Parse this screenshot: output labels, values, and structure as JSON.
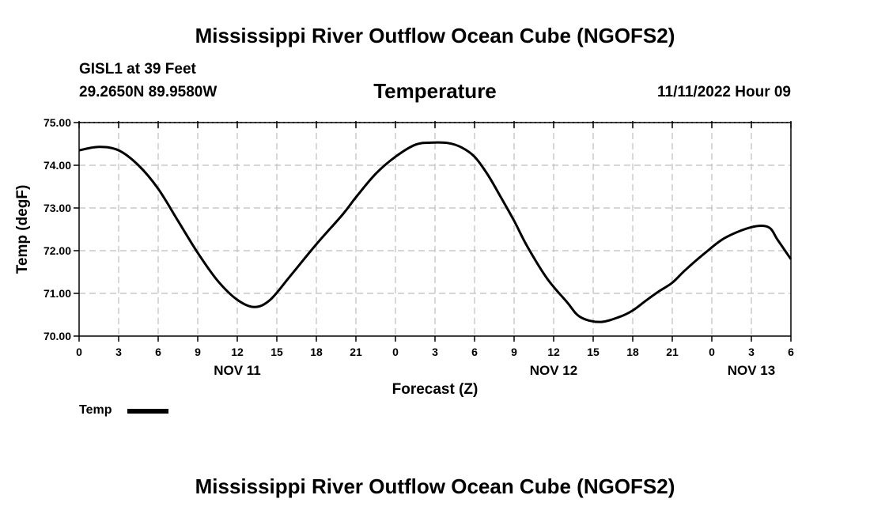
{
  "header": {
    "title": "Mississippi River Outflow Ocean Cube (NGOFS2)",
    "station": "GISL1 at 39 Feet",
    "coords": "29.2650N  89.9580W",
    "subtitle": "Temperature",
    "datetime": "11/11/2022 Hour 09"
  },
  "footer": {
    "title": "Mississippi River Outflow Ocean Cube (NGOFS2)"
  },
  "legend": {
    "label": "Temp",
    "color": "#000000"
  },
  "chart_data": {
    "type": "line",
    "title": "Temperature",
    "xlabel": "Forecast (Z)",
    "ylabel": "Temp (degF)",
    "ylim": [
      70.0,
      75.0
    ],
    "xlim": [
      0,
      54
    ],
    "grid": true,
    "y_ticks": [
      "70.00",
      "71.00",
      "72.00",
      "73.00",
      "74.00",
      "75.00"
    ],
    "y_tick_values": [
      70,
      71,
      72,
      73,
      74,
      75
    ],
    "x_ticks": [
      "0",
      "3",
      "6",
      "9",
      "12",
      "15",
      "18",
      "21",
      "0",
      "3",
      "6",
      "9",
      "12",
      "15",
      "18",
      "21",
      "0",
      "3",
      "6"
    ],
    "day_labels": [
      {
        "label": "NOV 11",
        "hour": 12
      },
      {
        "label": "NOV 12",
        "hour": 36
      },
      {
        "label": "NOV 13",
        "hour": 51
      }
    ],
    "series": [
      {
        "name": "Temp",
        "x": [
          0,
          1.5,
          3,
          4.5,
          6,
          7.5,
          9,
          10.5,
          12,
          13.3,
          14.5,
          16,
          18,
          20,
          21,
          22.5,
          24,
          25.5,
          26.7,
          28,
          29,
          30,
          31,
          32,
          33,
          34,
          35.5,
          37,
          38,
          39.5,
          41,
          42,
          43,
          44,
          45,
          46,
          47.5,
          49,
          51,
          52.3,
          53,
          54
        ],
        "values": [
          74.35,
          74.43,
          74.35,
          74.0,
          73.45,
          72.7,
          71.95,
          71.3,
          70.85,
          70.68,
          70.85,
          71.4,
          72.15,
          72.85,
          73.25,
          73.8,
          74.2,
          74.48,
          74.53,
          74.52,
          74.42,
          74.2,
          73.78,
          73.25,
          72.7,
          72.1,
          71.35,
          70.8,
          70.45,
          70.33,
          70.45,
          70.6,
          70.83,
          71.05,
          71.25,
          71.55,
          71.95,
          72.3,
          72.55,
          72.55,
          72.25,
          71.8
        ]
      }
    ]
  }
}
